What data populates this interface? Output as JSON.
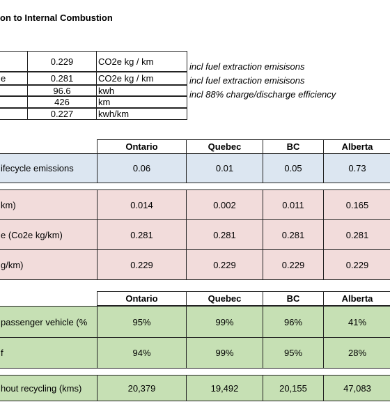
{
  "header": {
    "title": "on to Internal Combustion"
  },
  "inputs": {
    "rows": [
      [
        "",
        "0.229",
        "CO2e kg / km"
      ],
      [
        "e",
        "0.281",
        "CO2e kg / km"
      ],
      [
        "",
        "96.6",
        "kwh"
      ],
      [
        "",
        "426",
        "km"
      ],
      [
        "",
        "0.227",
        "kwh/km"
      ]
    ],
    "notes": [
      "incl fuel extraction emisisons",
      "incl fuel extraction emisisons",
      "incl 88% charge/discharge efficiency"
    ]
  },
  "table1": {
    "columns": [
      "Ontario",
      "Quebec",
      "BC",
      "Alberta"
    ],
    "rows": [
      [
        "ifecycle emissions",
        "0.06",
        "0.01",
        "0.05",
        "0.73"
      ],
      [
        "km)",
        "0.014",
        "0.002",
        "0.011",
        "0.165"
      ],
      [
        "e (Co2e kg/km)",
        "0.281",
        "0.281",
        "0.281",
        "0.281"
      ],
      [
        "g/km)",
        "0.229",
        "0.229",
        "0.229",
        "0.229"
      ]
    ]
  },
  "table2": {
    "columns": [
      "Ontario",
      "Quebec",
      "BC",
      "Alberta"
    ],
    "rows": [
      [
        "passenger vehicle (%",
        "95%",
        "99%",
        "96%",
        "41%"
      ],
      [
        "f",
        "94%",
        "99%",
        "95%",
        "28%"
      ],
      [
        "hout recycling (kms)",
        "20,379",
        "19,492",
        "20,155",
        "47,083"
      ]
    ]
  }
}
